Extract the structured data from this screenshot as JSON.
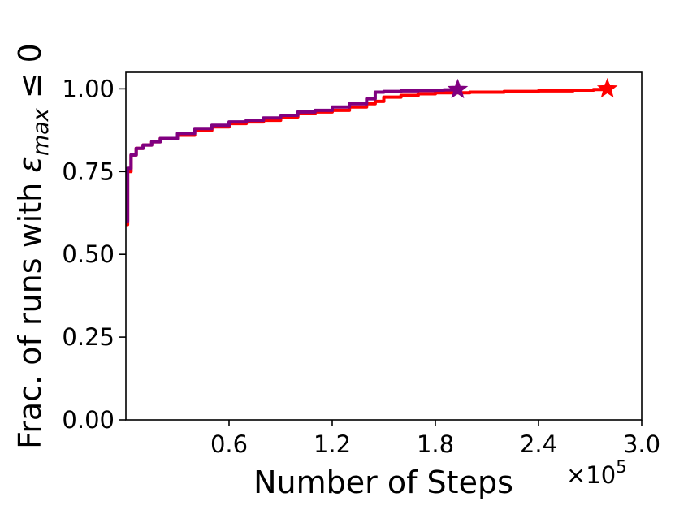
{
  "chart_data": {
    "type": "line",
    "title": "",
    "xlabel": "Number of Steps",
    "ylabel_prefix": "Frac. of runs with ",
    "ylabel_symbol": "ε",
    "ylabel_subscript": "max",
    "ylabel_suffix": " ≤ 0",
    "x_multiplier_base": "×10",
    "x_multiplier_exp": "5",
    "xlim": [
      0.0,
      3.0
    ],
    "ylim": [
      0.0,
      1.05
    ],
    "x_ticks": [
      0.6,
      1.2,
      1.8,
      2.4,
      3.0
    ],
    "x_tick_labels": [
      "0.6",
      "1.2",
      "1.8",
      "2.4",
      "3.0"
    ],
    "y_ticks": [
      0.0,
      0.25,
      0.5,
      0.75,
      1.0
    ],
    "y_tick_labels": [
      "0.00",
      "0.25",
      "0.50",
      "0.75",
      "1.00"
    ],
    "grid": false,
    "legend": "none",
    "series": [
      {
        "color": "#ff0000",
        "end_marker": "star",
        "x": [
          0.0,
          0.01,
          0.03,
          0.06,
          0.1,
          0.15,
          0.2,
          0.3,
          0.4,
          0.5,
          0.6,
          0.7,
          0.8,
          0.9,
          1.0,
          1.1,
          1.2,
          1.3,
          1.4,
          1.45,
          1.5,
          1.6,
          1.7,
          1.8,
          1.9,
          2.0,
          2.2,
          2.4,
          2.6,
          2.72,
          2.8
        ],
        "y": [
          0.59,
          0.75,
          0.8,
          0.82,
          0.83,
          0.84,
          0.85,
          0.86,
          0.875,
          0.885,
          0.895,
          0.9,
          0.905,
          0.915,
          0.925,
          0.93,
          0.935,
          0.945,
          0.955,
          0.962,
          0.975,
          0.98,
          0.985,
          0.988,
          0.988,
          0.99,
          0.992,
          0.994,
          0.996,
          0.998,
          1.0
        ]
      },
      {
        "color": "#800080",
        "end_marker": "star",
        "x": [
          0.0,
          0.01,
          0.03,
          0.06,
          0.1,
          0.15,
          0.2,
          0.3,
          0.4,
          0.5,
          0.6,
          0.7,
          0.8,
          0.9,
          1.0,
          1.1,
          1.2,
          1.3,
          1.4,
          1.45,
          1.5,
          1.6,
          1.7,
          1.8,
          1.85,
          1.93
        ],
        "y": [
          0.6,
          0.76,
          0.8,
          0.82,
          0.83,
          0.84,
          0.85,
          0.865,
          0.88,
          0.89,
          0.9,
          0.905,
          0.912,
          0.92,
          0.93,
          0.935,
          0.945,
          0.955,
          0.97,
          0.99,
          0.992,
          0.994,
          0.995,
          0.996,
          0.997,
          0.998
        ]
      }
    ]
  }
}
